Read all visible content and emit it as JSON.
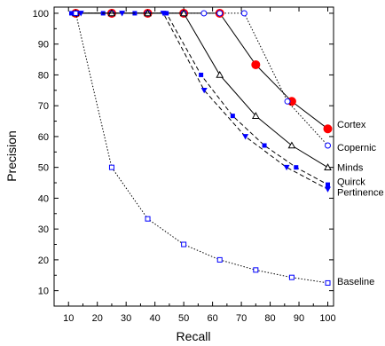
{
  "chart_data": {
    "type": "line",
    "xlabel": "Recall",
    "ylabel": "Precision",
    "xlim": [
      5,
      102
    ],
    "ylim": [
      5,
      102
    ],
    "xticks": [
      10,
      20,
      30,
      40,
      50,
      60,
      70,
      80,
      90,
      100
    ],
    "yticks": [
      10,
      20,
      30,
      40,
      50,
      60,
      70,
      80,
      90,
      100
    ],
    "grid": false,
    "legend": "series labels at right end of lines",
    "series": [
      {
        "name": "Cortex",
        "color": "#ff0000",
        "marker": "filled-circle",
        "line": "solid",
        "x": [
          12.5,
          25,
          37.5,
          50,
          62.5,
          75,
          87.5,
          100
        ],
        "y": [
          100,
          100,
          100,
          100,
          100,
          83.3,
          71.4,
          62.5
        ]
      },
      {
        "name": "Copernic",
        "color": "#0000ff",
        "marker": "open-circle",
        "line": "dotted",
        "x": [
          12.5,
          25,
          37.5,
          50,
          57,
          62.5,
          71,
          86,
          100
        ],
        "y": [
          100,
          100,
          100,
          100,
          100,
          100,
          100,
          71.4,
          57.1
        ]
      },
      {
        "name": "Minds",
        "color": "#000000",
        "marker": "open-triangle",
        "line": "solid",
        "x": [
          12.5,
          25,
          37.5,
          50,
          62.5,
          75,
          87.5,
          100
        ],
        "y": [
          100,
          100,
          100,
          100,
          80,
          66.7,
          57.1,
          50
        ]
      },
      {
        "name": "Quirck",
        "color": "#0000ff",
        "marker": "filled-square",
        "line": "dashed",
        "x": [
          11,
          22,
          33,
          44,
          56,
          67,
          78,
          89,
          100
        ],
        "y": [
          100,
          100,
          100,
          100,
          80,
          66.7,
          57.1,
          50,
          44.4
        ]
      },
      {
        "name": "Pertinence",
        "color": "#0000ff",
        "marker": "filled-triangle-down",
        "line": "dashed",
        "x": [
          14.3,
          28.6,
          42.9,
          57.1,
          71.4,
          85.7,
          100
        ],
        "y": [
          100,
          100,
          100,
          75,
          60,
          50,
          42.9
        ]
      },
      {
        "name": "Baseline",
        "color": "#0000ff",
        "marker": "open-square",
        "line": "dotted",
        "x": [
          12.5,
          25,
          37.5,
          50,
          62.5,
          75,
          87.5,
          100
        ],
        "y": [
          100,
          50,
          33.3,
          25,
          20,
          16.7,
          14.3,
          12.5
        ]
      }
    ],
    "end_labels": [
      {
        "name": "Cortex",
        "y": 64
      },
      {
        "name": "Copernic",
        "y": 56.5
      },
      {
        "name": "Minds",
        "y": 50
      },
      {
        "name": "Quirck",
        "y": 45.5
      },
      {
        "name": "Pertinence",
        "y": 42
      },
      {
        "name": "Baseline",
        "y": 13
      }
    ]
  }
}
